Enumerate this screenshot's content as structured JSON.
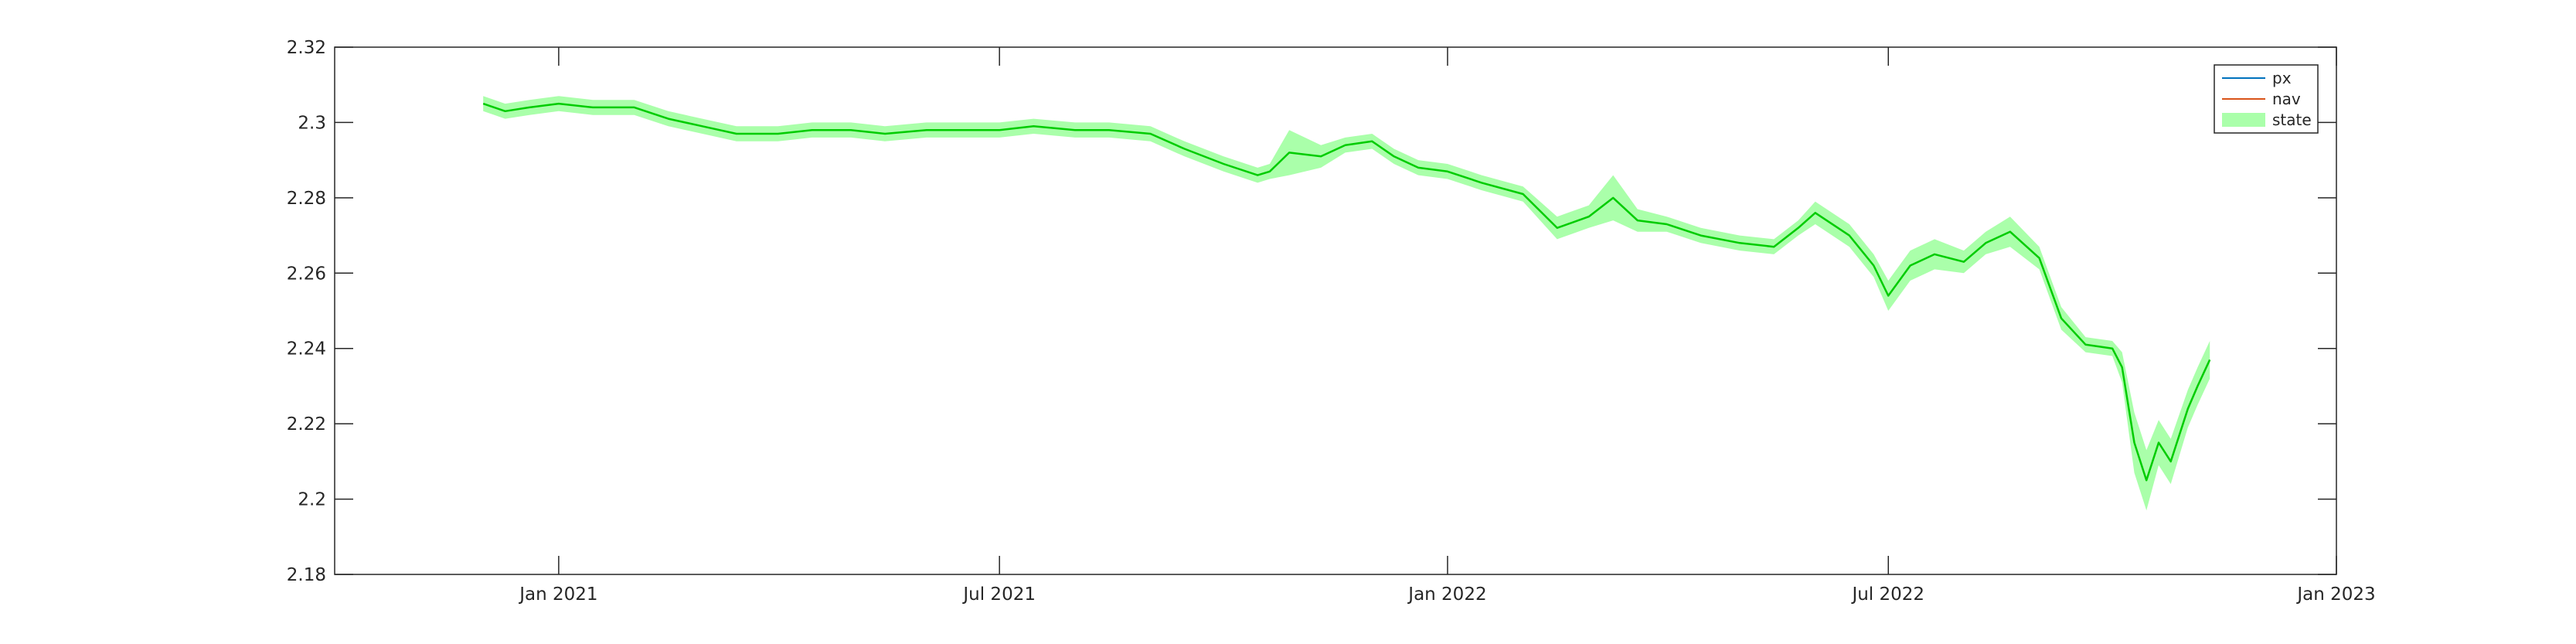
{
  "chart_data": {
    "type": "line",
    "title": "",
    "xlabel": "",
    "ylabel": "",
    "xlim": [
      "2020-10-01",
      "2023-01-01"
    ],
    "ylim": [
      2.18,
      2.32
    ],
    "x_ticks": [
      "2021-01-01",
      "2021-07-01",
      "2022-01-01",
      "2022-07-01",
      "2023-01-01"
    ],
    "x_tick_labels": [
      "Jan 2021",
      "Jul 2021",
      "Jan 2022",
      "Jul 2022",
      "Jan 2023"
    ],
    "y_ticks": [
      2.18,
      2.2,
      2.22,
      2.24,
      2.26,
      2.28,
      2.3,
      2.32
    ],
    "y_tick_labels": [
      "2.18",
      "2.2",
      "2.22",
      "2.24",
      "2.26",
      "2.28",
      "2.3",
      "2.32"
    ],
    "grid": false,
    "legend": {
      "position": "top-right",
      "entries": [
        {
          "label": "px",
          "color": "#0072BD",
          "kind": "line"
        },
        {
          "label": "nav",
          "color": "#D95319",
          "kind": "line"
        },
        {
          "label": "state",
          "color": "#AAFFAA",
          "kind": "band"
        }
      ]
    },
    "colors": {
      "state_line": "#00CC00",
      "state_band": "#AAFFAA",
      "axes": "#262626"
    },
    "series": [
      {
        "name": "state",
        "x": [
          "2020-12-01",
          "2020-12-10",
          "2020-12-20",
          "2021-01-01",
          "2021-01-15",
          "2021-02-01",
          "2021-02-15",
          "2021-03-01",
          "2021-03-15",
          "2021-04-01",
          "2021-04-15",
          "2021-05-01",
          "2021-05-15",
          "2021-06-01",
          "2021-06-15",
          "2021-07-01",
          "2021-07-15",
          "2021-08-01",
          "2021-08-15",
          "2021-09-01",
          "2021-09-15",
          "2021-10-01",
          "2021-10-15",
          "2021-10-20",
          "2021-10-28",
          "2021-11-10",
          "2021-11-20",
          "2021-12-01",
          "2021-12-10",
          "2021-12-20",
          "2022-01-01",
          "2022-01-15",
          "2022-02-01",
          "2022-02-15",
          "2022-02-28",
          "2022-03-10",
          "2022-03-20",
          "2022-04-01",
          "2022-04-15",
          "2022-05-01",
          "2022-05-15",
          "2022-05-25",
          "2022-06-01",
          "2022-06-15",
          "2022-06-25",
          "2022-07-01",
          "2022-07-10",
          "2022-07-20",
          "2022-08-01",
          "2022-08-10",
          "2022-08-20",
          "2022-09-01",
          "2022-09-10",
          "2022-09-20",
          "2022-10-01",
          "2022-10-05",
          "2022-10-10",
          "2022-10-15",
          "2022-10-20",
          "2022-10-25",
          "2022-11-01",
          "2022-11-05",
          "2022-11-10"
        ],
        "values": [
          2.305,
          2.303,
          2.304,
          2.305,
          2.304,
          2.304,
          2.301,
          2.299,
          2.297,
          2.297,
          2.298,
          2.298,
          2.297,
          2.298,
          2.298,
          2.298,
          2.299,
          2.298,
          2.298,
          2.297,
          2.293,
          2.289,
          2.286,
          2.287,
          2.292,
          2.291,
          2.294,
          2.295,
          2.291,
          2.288,
          2.287,
          2.284,
          2.281,
          2.272,
          2.275,
          2.28,
          2.274,
          2.273,
          2.27,
          2.268,
          2.267,
          2.272,
          2.276,
          2.27,
          2.262,
          2.254,
          2.262,
          2.265,
          2.263,
          2.268,
          2.271,
          2.264,
          2.248,
          2.241,
          2.24,
          2.235,
          2.215,
          2.205,
          2.215,
          2.21,
          2.224,
          2.23,
          2.237
        ],
        "band_half_width": [
          0.002,
          0.002,
          0.002,
          0.002,
          0.002,
          0.002,
          0.002,
          0.002,
          0.002,
          0.002,
          0.002,
          0.002,
          0.002,
          0.002,
          0.002,
          0.002,
          0.002,
          0.002,
          0.002,
          0.002,
          0.002,
          0.002,
          0.002,
          0.002,
          0.006,
          0.003,
          0.002,
          0.002,
          0.002,
          0.002,
          0.002,
          0.002,
          0.002,
          0.003,
          0.003,
          0.006,
          0.003,
          0.002,
          0.002,
          0.002,
          0.002,
          0.002,
          0.003,
          0.003,
          0.003,
          0.004,
          0.004,
          0.004,
          0.003,
          0.003,
          0.004,
          0.003,
          0.003,
          0.002,
          0.002,
          0.004,
          0.008,
          0.008,
          0.006,
          0.006,
          0.005,
          0.005,
          0.005
        ]
      }
    ]
  }
}
